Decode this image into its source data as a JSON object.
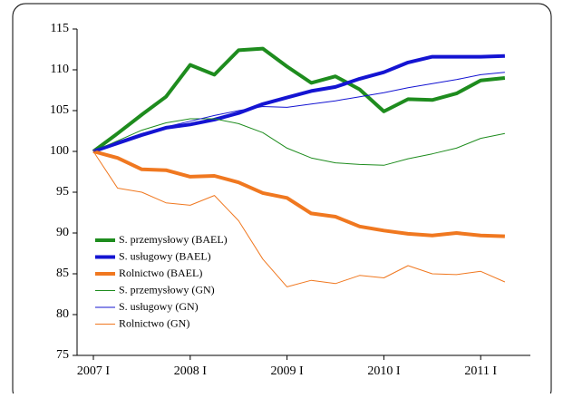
{
  "chart_data": {
    "type": "line",
    "categories": [
      "2007 I",
      null,
      null,
      null,
      "2008 I",
      null,
      null,
      null,
      "2009 I",
      null,
      null,
      null,
      "2010 I",
      null,
      null,
      null,
      "2011 I",
      null
    ],
    "series": [
      {
        "name": "S. przemysłowy (BAEL)",
        "color": "#1e8c1e",
        "line_width": 4,
        "values": [
          100,
          102.2,
          104.5,
          106.7,
          110.6,
          109.4,
          112.4,
          112.6,
          110.4,
          108.4,
          109.2,
          107.6,
          104.9,
          106.4,
          106.3,
          107.1,
          108.7,
          109.0
        ]
      },
      {
        "name": "S. usługowy (BAEL)",
        "color": "#1414d2",
        "line_width": 4,
        "values": [
          100,
          101.0,
          102.0,
          102.9,
          103.3,
          103.9,
          104.7,
          105.8,
          106.6,
          107.4,
          107.9,
          108.9,
          109.7,
          110.9,
          111.6,
          111.6,
          111.6,
          111.7
        ]
      },
      {
        "name": "Rolnictwo (BAEL)",
        "color": "#f07820",
        "line_width": 4,
        "values": [
          100,
          99.2,
          97.8,
          97.7,
          96.9,
          97.0,
          96.2,
          94.9,
          94.3,
          92.4,
          92.0,
          90.8,
          90.3,
          89.9,
          89.7,
          90.0,
          89.7,
          89.6
        ]
      },
      {
        "name": "S. przemysłowy (GN)",
        "color": "#1e8c1e",
        "line_width": 1,
        "values": [
          100,
          101.3,
          102.6,
          103.5,
          104.0,
          104.0,
          103.4,
          102.3,
          100.4,
          99.2,
          98.6,
          98.4,
          98.3,
          99.1,
          99.7,
          100.4,
          101.6,
          102.2
        ]
      },
      {
        "name": "S. usługowy (GN)",
        "color": "#1414d2",
        "line_width": 1,
        "values": [
          100,
          101.2,
          102.2,
          103.0,
          103.7,
          104.4,
          105.0,
          105.5,
          105.4,
          105.8,
          106.2,
          106.7,
          107.2,
          107.8,
          108.3,
          108.8,
          109.4,
          109.7
        ]
      },
      {
        "name": "Rolnictwo (GN)",
        "color": "#f07820",
        "line_width": 1,
        "values": [
          100,
          95.5,
          95.0,
          93.7,
          93.4,
          94.6,
          91.5,
          86.8,
          83.4,
          84.2,
          83.8,
          84.8,
          84.5,
          86.0,
          85.0,
          84.9,
          85.3,
          84.0
        ]
      }
    ],
    "ylim": [
      75,
      115
    ],
    "yticks": [
      75,
      80,
      85,
      90,
      95,
      100,
      105,
      110,
      115
    ],
    "grid": false,
    "legend": "lower left"
  }
}
